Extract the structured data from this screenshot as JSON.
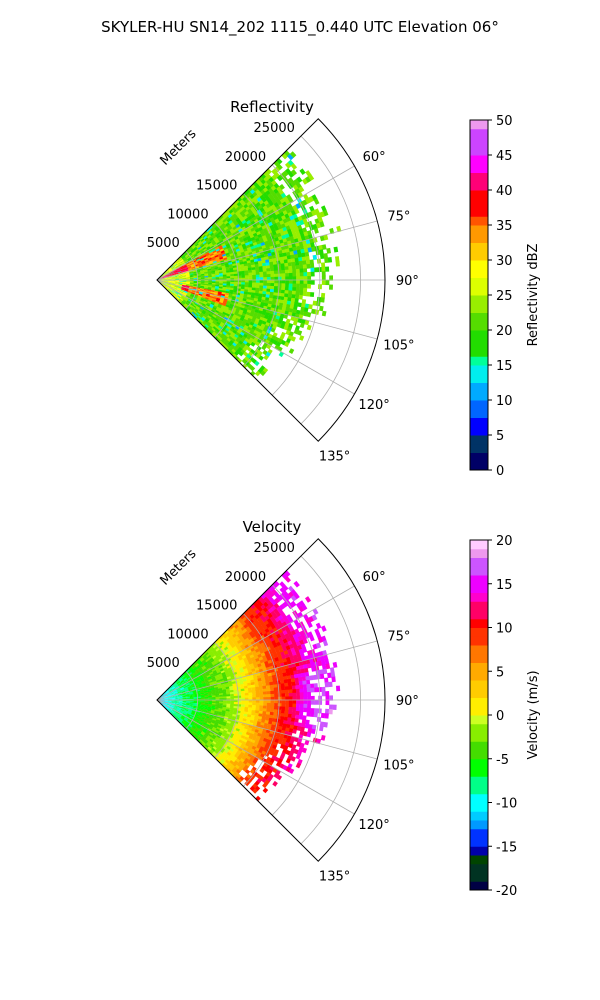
{
  "figure": {
    "suptitle": "SKYLER-HU  SN14_202  1115_0.440 UTC Elevation 06°"
  },
  "chart_data": [
    {
      "type": "polar-sector",
      "title": "Reflectivity",
      "radial_label": "Meters",
      "radial_ticks": [
        5000,
        10000,
        15000,
        20000,
        25000
      ],
      "radial_tick_labels": [
        "5000",
        "10000",
        "15000",
        "20000",
        "25000"
      ],
      "rlim": [
        0,
        28000
      ],
      "azimuth_range_deg": [
        45,
        135
      ],
      "azimuth_ticks": [
        60,
        75,
        90,
        105,
        120,
        135
      ],
      "azimuth_tick_labels": [
        "60°",
        "75°",
        "90°",
        "105°",
        "120°",
        "135°"
      ],
      "grid": true,
      "colorbar": {
        "label": "Reflectivity dBZ",
        "range": [
          0,
          50
        ],
        "ticks": [
          0,
          5,
          10,
          15,
          20,
          25,
          30,
          35,
          40,
          45,
          50
        ],
        "tick_labels": [
          "0",
          "5",
          "10",
          "15",
          "20",
          "25",
          "30",
          "35",
          "40",
          "45",
          "50"
        ]
      },
      "field_description": "Mostly 18-26 dBZ across sector; 30-36 dBZ bands near origin at ~68° and ~105°; sparse 10-15 dBZ pixels mid-range",
      "echo_extent_m": {
        "65": 22000,
        "80": 22000,
        "95": 21000,
        "110": 19000,
        "125": 17000,
        "133": 16500
      }
    },
    {
      "type": "polar-sector",
      "title": "Velocity",
      "radial_label": "Meters",
      "radial_ticks": [
        5000,
        10000,
        15000,
        20000,
        25000
      ],
      "radial_tick_labels": [
        "5000",
        "10000",
        "15000",
        "20000",
        "25000"
      ],
      "rlim": [
        0,
        28000
      ],
      "azimuth_range_deg": [
        45,
        135
      ],
      "azimuth_ticks": [
        60,
        75,
        90,
        105,
        120,
        135
      ],
      "azimuth_tick_labels": [
        "60°",
        "75°",
        "90°",
        "105°",
        "120°",
        "135°"
      ],
      "grid": true,
      "colorbar": {
        "label": "Velocity (m/s)",
        "range": [
          -20,
          20
        ],
        "ticks": [
          -20,
          -15,
          -10,
          -5,
          0,
          5,
          10,
          15,
          20
        ],
        "tick_labels": [
          "-20",
          "-15",
          "-10",
          "-5",
          "0",
          "5",
          "10",
          "15",
          "20"
        ]
      },
      "field_description": "Velocity increases with range: about -12 m/s near origin, -5 m/s at 6 km, 0 m/s at 11 km, +8 m/s at 15 km, +14 m/s beyond 18 km",
      "radial_profile": {
        "range_m": [
          0,
          2000,
          6000,
          9000,
          11000,
          13000,
          15000,
          17000,
          19000,
          22000
        ],
        "velocity_ms": [
          -12,
          -9,
          -5,
          -2,
          1,
          5,
          9,
          11,
          14,
          15
        ]
      },
      "echo_extent_m": {
        "65": 22000,
        "80": 22000,
        "95": 21000,
        "110": 19000,
        "125": 17000,
        "133": 16500
      }
    }
  ]
}
